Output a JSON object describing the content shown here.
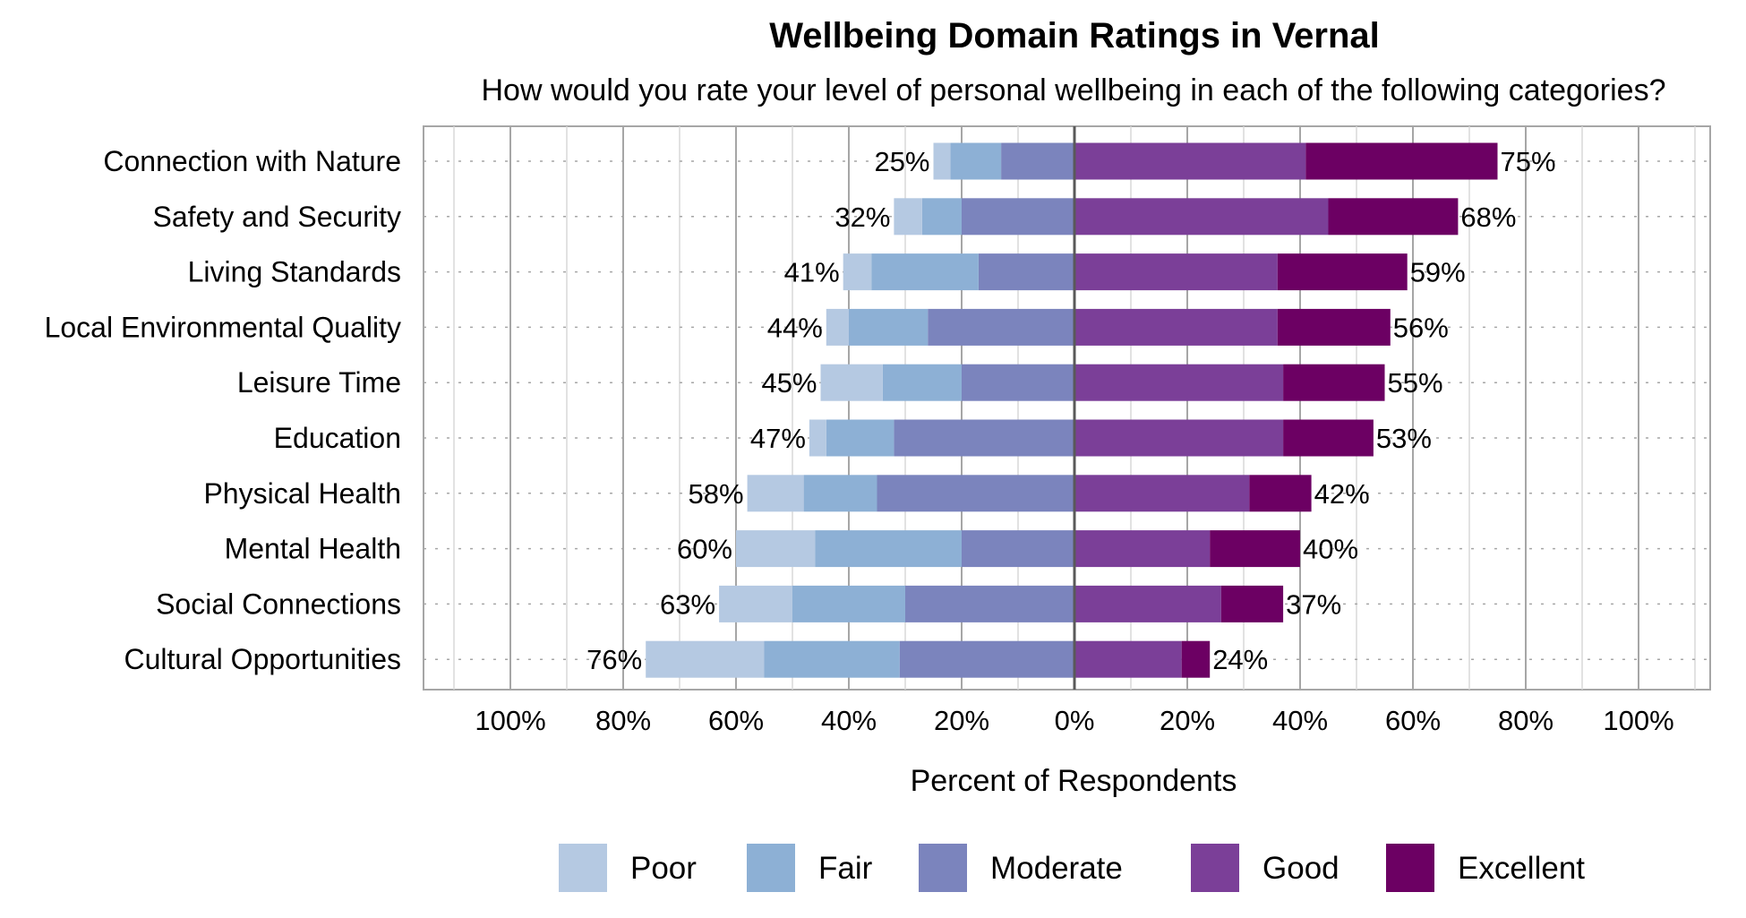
{
  "chart_data": {
    "type": "bar",
    "orientation": "horizontal",
    "stacked": true,
    "diverging": true,
    "title": "Wellbeing Domain Ratings in Vernal",
    "subtitle": "How would you rate your level of personal wellbeing in each of the following categories?",
    "xlabel": "Percent of Respondents",
    "xlim": [
      -100,
      100
    ],
    "x_ticks": [
      "100%",
      "80%",
      "60%",
      "40%",
      "20%",
      "0%",
      "20%",
      "40%",
      "60%",
      "80%",
      "100%"
    ],
    "grid": true,
    "legend_position": "bottom",
    "categories": [
      "Connection with Nature",
      "Safety and Security",
      "Living Standards",
      "Local Environmental Quality",
      "Leisure Time",
      "Education",
      "Physical Health",
      "Mental Health",
      "Social Connections",
      "Cultural Opportunities"
    ],
    "series": [
      {
        "name": "Poor",
        "side": "negative",
        "color": "#b5c9e2",
        "values": [
          3,
          5,
          5,
          4,
          11,
          3,
          10,
          14,
          13,
          21
        ]
      },
      {
        "name": "Fair",
        "side": "negative",
        "color": "#8db0d5",
        "values": [
          9,
          7,
          19,
          14,
          14,
          12,
          13,
          26,
          20,
          24
        ]
      },
      {
        "name": "Moderate",
        "side": "negative",
        "color": "#7b84bd",
        "values": [
          13,
          20,
          17,
          26,
          20,
          32,
          35,
          20,
          30,
          31
        ]
      },
      {
        "name": "Good",
        "side": "positive",
        "color": "#7b3f98",
        "values": [
          41,
          45,
          36,
          36,
          37,
          37,
          31,
          24,
          26,
          19
        ]
      },
      {
        "name": "Excellent",
        "side": "positive",
        "color": "#6c0063",
        "values": [
          34,
          23,
          23,
          20,
          18,
          16,
          11,
          16,
          11,
          5
        ]
      }
    ],
    "negative_totals": [
      "25%",
      "32%",
      "41%",
      "44%",
      "45%",
      "47%",
      "58%",
      "60%",
      "63%",
      "76%"
    ],
    "positive_totals": [
      "75%",
      "68%",
      "59%",
      "56%",
      "55%",
      "53%",
      "42%",
      "40%",
      "37%",
      "24%"
    ]
  }
}
